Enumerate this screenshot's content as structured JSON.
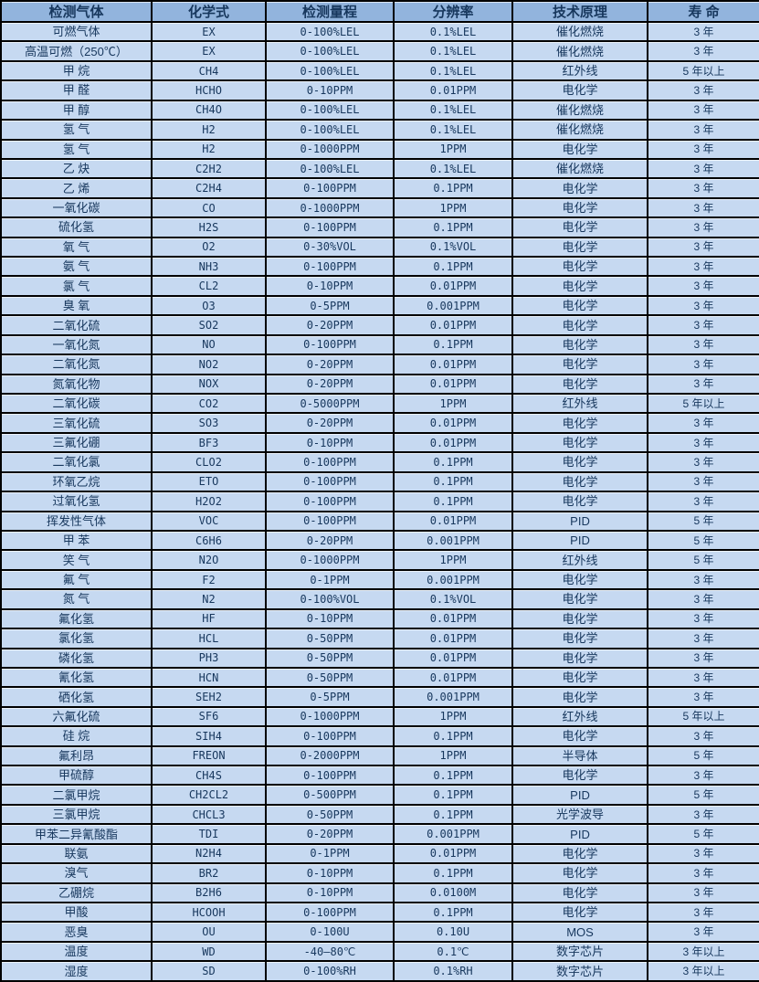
{
  "colors": {
    "header_bg": "#92b4dd",
    "row_bg": "#c6d9f1",
    "border": "#000000",
    "text": "#17375d"
  },
  "table": {
    "columns": [
      "检测气体",
      "化学式",
      "检测量程",
      "分辨率",
      "技术原理",
      "寿 命"
    ],
    "cell_names": [
      "gas-name",
      "chemical-formula",
      "detection-range",
      "resolution",
      "technology",
      "lifespan"
    ],
    "rows": [
      [
        "可燃气体",
        "EX",
        "0-100%LEL",
        "0.1%LEL",
        "催化燃烧",
        "3 年"
      ],
      [
        "高温可燃（250℃）",
        "EX",
        "0-100%LEL",
        "0.1%LEL",
        "催化燃烧",
        "3 年"
      ],
      [
        "甲 烷",
        "CH4",
        "0-100%LEL",
        "0.1%LEL",
        "红外线",
        "5 年以上"
      ],
      [
        "甲 醛",
        "HCHO",
        "0-10PPM",
        "0.01PPM",
        "电化学",
        "3 年"
      ],
      [
        "甲 醇",
        "CH4O",
        "0-100%LEL",
        "0.1%LEL",
        "催化燃烧",
        "3 年"
      ],
      [
        "氢 气",
        "H2",
        "0-100%LEL",
        "0.1%LEL",
        "催化燃烧",
        "3 年"
      ],
      [
        "氢 气",
        "H2",
        "0-1000PPM",
        "1PPM",
        "电化学",
        "3 年"
      ],
      [
        "乙 炔",
        "C2H2",
        "0-100%LEL",
        "0.1%LEL",
        "催化燃烧",
        "3 年"
      ],
      [
        "乙 烯",
        "C2H4",
        "0-100PPM",
        "0.1PPM",
        "电化学",
        "3 年"
      ],
      [
        "一氧化碳",
        "CO",
        "0-1000PPM",
        "1PPM",
        "电化学",
        "3 年"
      ],
      [
        "硫化氢",
        "H2S",
        "0-100PPM",
        "0.1PPM",
        "电化学",
        "3 年"
      ],
      [
        "氧 气",
        "O2",
        "0-30%VOL",
        "0.1%VOL",
        "电化学",
        "3 年"
      ],
      [
        "氨 气",
        "NH3",
        "0-100PPM",
        "0.1PPM",
        "电化学",
        "3 年"
      ],
      [
        "氯 气",
        "CL2",
        "0-10PPM",
        "0.01PPM",
        "电化学",
        "3 年"
      ],
      [
        "臭 氧",
        "O3",
        "0-5PPM",
        "0.001PPM",
        "电化学",
        "3 年"
      ],
      [
        "二氧化硫",
        "SO2",
        "0-20PPM",
        "0.01PPM",
        "电化学",
        "3 年"
      ],
      [
        "一氧化氮",
        "NO",
        "0-100PPM",
        "0.1PPM",
        "电化学",
        "3 年"
      ],
      [
        "二氧化氮",
        "NO2",
        "0-20PPM",
        "0.01PPM",
        "电化学",
        "3 年"
      ],
      [
        "氮氧化物",
        "NOX",
        "0-20PPM",
        "0.01PPM",
        "电化学",
        "3 年"
      ],
      [
        "二氧化碳",
        "CO2",
        "0-5000PPM",
        "1PPM",
        "红外线",
        "5 年以上"
      ],
      [
        "三氧化硫",
        "SO3",
        "0-20PPM",
        "0.01PPM",
        "电化学",
        "3 年"
      ],
      [
        "三氟化硼",
        "BF3",
        "0-10PPM",
        "0.01PPM",
        "电化学",
        "3 年"
      ],
      [
        "二氧化氯",
        "CLO2",
        "0-100PPM",
        "0.1PPM",
        "电化学",
        "3 年"
      ],
      [
        "环氧乙烷",
        "ETO",
        "0-100PPM",
        "0.1PPM",
        "电化学",
        "3 年"
      ],
      [
        "过氧化氢",
        "H2O2",
        "0-100PPM",
        "0.1PPM",
        "电化学",
        "3 年"
      ],
      [
        "挥发性气体",
        "VOC",
        "0-100PPM",
        "0.01PPM",
        "PID",
        "5 年"
      ],
      [
        "甲 苯",
        "C6H6",
        "0-20PPM",
        "0.001PPM",
        "PID",
        "5 年"
      ],
      [
        "笑 气",
        "N2O",
        "0-1000PPM",
        "1PPM",
        "红外线",
        "5 年"
      ],
      [
        "氟 气",
        "F2",
        "0-1PPM",
        "0.001PPM",
        "电化学",
        "3 年"
      ],
      [
        "氮 气",
        "N2",
        "0-100%VOL",
        "0.1%VOL",
        "电化学",
        "3 年"
      ],
      [
        "氟化氢",
        "HF",
        "0-10PPM",
        "0.01PPM",
        "电化学",
        "3 年"
      ],
      [
        "氯化氢",
        "HCL",
        "0-50PPM",
        "0.01PPM",
        "电化学",
        "3 年"
      ],
      [
        "磷化氢",
        "PH3",
        "0-50PPM",
        "0.01PPM",
        "电化学",
        "3 年"
      ],
      [
        "氰化氢",
        "HCN",
        "0-50PPM",
        "0.01PPM",
        "电化学",
        "3 年"
      ],
      [
        "硒化氢",
        "SEH2",
        "0-5PPM",
        "0.001PPM",
        "电化学",
        "3 年"
      ],
      [
        "六氟化硫",
        "SF6",
        "0-1000PPM",
        "1PPM",
        "红外线",
        "5 年以上"
      ],
      [
        "硅 烷",
        "SIH4",
        "0-100PPM",
        "0.1PPM",
        "电化学",
        "3 年"
      ],
      [
        "氟利昂",
        "FREON",
        "0-2000PPM",
        "1PPM",
        "半导体",
        "5 年"
      ],
      [
        "甲硫醇",
        "CH4S",
        "0-100PPM",
        "0.1PPM",
        "电化学",
        "3 年"
      ],
      [
        "二氯甲烷",
        "CH2CL2",
        "0-500PPM",
        "0.1PPM",
        "PID",
        "5 年"
      ],
      [
        "三氯甲烷",
        "CHCL3",
        "0-50PPM",
        "0.1PPM",
        "光学波导",
        "3 年"
      ],
      [
        "甲苯二异氰酸酯",
        "TDI",
        "0-20PPM",
        "0.001PPM",
        "PID",
        "5 年"
      ],
      [
        "联氨",
        "N2H4",
        "0-1PPM",
        "0.01PPM",
        "电化学",
        "3 年"
      ],
      [
        "溴气",
        "BR2",
        "0-10PPM",
        "0.1PPM",
        "电化学",
        "3 年"
      ],
      [
        "乙硼烷",
        "B2H6",
        "0-10PPM",
        "0.0100M",
        "电化学",
        "3 年"
      ],
      [
        "甲酸",
        "HCOOH",
        "0-100PPM",
        "0.1PPM",
        "电化学",
        "3 年"
      ],
      [
        "恶臭",
        "OU",
        "0-100U",
        "0.10U",
        "MOS",
        "3 年"
      ],
      [
        "温度",
        "WD",
        "-40—80℃",
        "0.1℃",
        "数字芯片",
        "3 年以上"
      ],
      [
        "湿度",
        "SD",
        "0-100%RH",
        "0.1%RH",
        "数字芯片",
        "3 年以上"
      ]
    ]
  }
}
